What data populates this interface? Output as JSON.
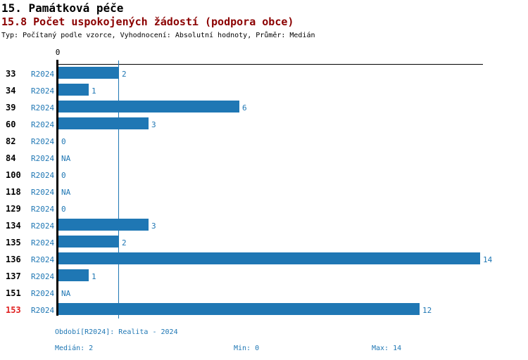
{
  "header": {
    "section_title": "15. Památková péče",
    "indicator_title": "15.8 Počet uspokojených žádostí (podpora obce)",
    "meta_line": "Typ: Počítaný podle vzorce, Vyhodnocení: Absolutní hodnoty, Průměr: Medián"
  },
  "chart_data": {
    "type": "bar",
    "orientation": "horizontal",
    "axis_top_label": "0",
    "period_label": "R2024",
    "categories": [
      "33",
      "34",
      "39",
      "60",
      "82",
      "84",
      "100",
      "118",
      "129",
      "134",
      "135",
      "136",
      "137",
      "151",
      "153"
    ],
    "values": [
      2,
      1,
      6,
      3,
      0,
      null,
      0,
      null,
      0,
      3,
      2,
      14,
      1,
      null,
      12
    ],
    "value_labels": [
      "2",
      "1",
      "6",
      "3",
      "0",
      "NA",
      "0",
      "NA",
      "0",
      "3",
      "2",
      "14",
      "1",
      "NA",
      "12"
    ],
    "highlighted_category": "153",
    "xlim": [
      0,
      14
    ],
    "median_line_value": 2,
    "legend_position": "none",
    "grid": false
  },
  "footer": {
    "period_line": "Období[R2024]: Realita - 2024",
    "median_label": "Medián: 2",
    "min_label": "Min: 0",
    "max_label": "Max: 14"
  },
  "colors": {
    "bar": "#1f77b4",
    "label_blue": "#1f77b4",
    "highlight_red": "#e02020",
    "indicator_title": "#8b0000",
    "axis_black": "#000000"
  }
}
